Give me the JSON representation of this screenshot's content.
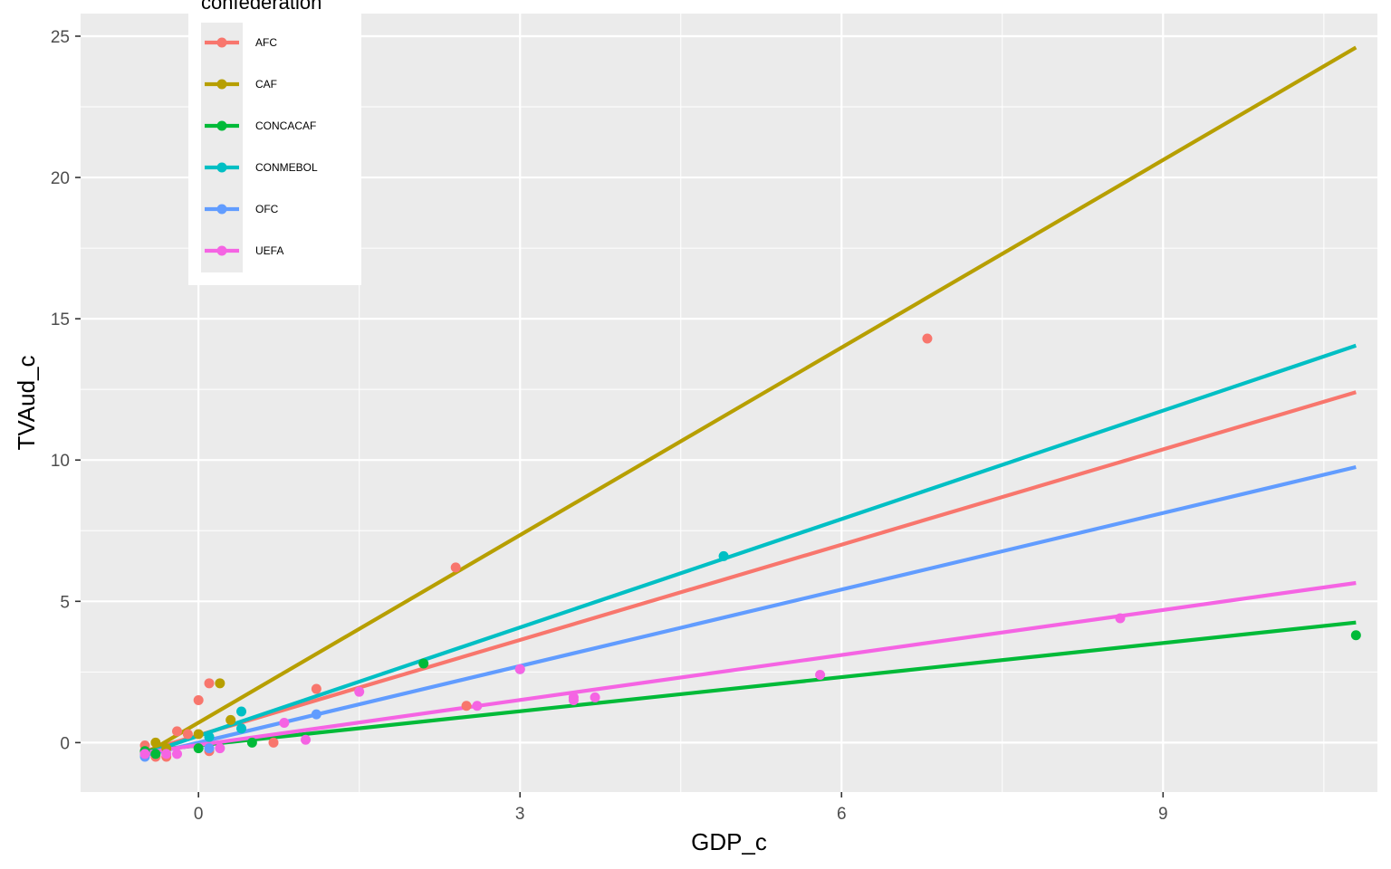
{
  "chart_data": {
    "type": "scatter",
    "xlabel": "GDP_c",
    "ylabel": "TVAud_c",
    "xlim": [
      -1.1,
      11.0
    ],
    "ylim": [
      -1.75,
      25.8
    ],
    "x_ticks": [
      {
        "value": 0,
        "label": "0"
      },
      {
        "value": 3,
        "label": "3"
      },
      {
        "value": 6,
        "label": "6"
      },
      {
        "value": 9,
        "label": "9"
      }
    ],
    "y_ticks": [
      {
        "value": 0,
        "label": "0"
      },
      {
        "value": 5,
        "label": "5"
      },
      {
        "value": 10,
        "label": "10"
      },
      {
        "value": 15,
        "label": "15"
      },
      {
        "value": 20,
        "label": "20"
      },
      {
        "value": 25,
        "label": "25"
      }
    ],
    "grid": true,
    "legend": {
      "title": "confederation",
      "position": "top-left"
    },
    "series": [
      {
        "name": "AFC",
        "color": "#F8766D",
        "points": [
          [
            -0.5,
            -0.1
          ],
          [
            -0.5,
            -0.3
          ],
          [
            -0.4,
            -0.5
          ],
          [
            -0.3,
            -0.5
          ],
          [
            -0.2,
            0.4
          ],
          [
            -0.1,
            0.3
          ],
          [
            0.0,
            1.5
          ],
          [
            0.1,
            2.1
          ],
          [
            0.1,
            -0.3
          ],
          [
            0.7,
            0.0
          ],
          [
            1.1,
            1.9
          ],
          [
            2.4,
            6.2
          ],
          [
            2.5,
            1.3
          ],
          [
            6.8,
            14.3
          ]
        ],
        "line": [
          [
            -0.5,
            -0.3
          ],
          [
            10.8,
            12.4
          ]
        ]
      },
      {
        "name": "CAF",
        "color": "#B79F00",
        "points": [
          [
            -0.4,
            0.0
          ],
          [
            -0.3,
            -0.2
          ],
          [
            0.0,
            0.3
          ],
          [
            0.2,
            2.1
          ],
          [
            0.3,
            0.8
          ]
        ],
        "line": [
          [
            -0.5,
            -0.4
          ],
          [
            10.8,
            24.6
          ]
        ]
      },
      {
        "name": "CONCACAF",
        "color": "#00BA38",
        "points": [
          [
            -0.5,
            -0.3
          ],
          [
            -0.4,
            -0.4
          ],
          [
            0.0,
            -0.2
          ],
          [
            0.5,
            0.0
          ],
          [
            2.1,
            2.8
          ],
          [
            10.8,
            3.8
          ]
        ],
        "line": [
          [
            -0.5,
            -0.3
          ],
          [
            10.8,
            4.25
          ]
        ]
      },
      {
        "name": "CONMEBOL",
        "color": "#00BFC4",
        "points": [
          [
            -0.5,
            -0.4
          ],
          [
            0.1,
            0.2
          ],
          [
            0.4,
            0.5
          ],
          [
            0.4,
            1.1
          ],
          [
            4.9,
            6.6
          ]
        ],
        "line": [
          [
            -0.5,
            -0.4
          ],
          [
            10.8,
            14.05
          ]
        ]
      },
      {
        "name": "OFC",
        "color": "#619CFF",
        "points": [
          [
            -0.5,
            -0.5
          ],
          [
            0.1,
            -0.2
          ],
          [
            1.1,
            1.0
          ],
          [
            3.0,
            2.6
          ]
        ],
        "line": [
          [
            -0.5,
            -0.45
          ],
          [
            10.8,
            9.75
          ]
        ]
      },
      {
        "name": "UEFA",
        "color": "#F564E3",
        "points": [
          [
            -0.5,
            -0.4
          ],
          [
            -0.2,
            -0.4
          ],
          [
            -0.3,
            -0.4
          ],
          [
            0.2,
            -0.2
          ],
          [
            0.8,
            0.7
          ],
          [
            1.0,
            0.1
          ],
          [
            1.5,
            1.8
          ],
          [
            2.6,
            1.3
          ],
          [
            3.0,
            2.6
          ],
          [
            3.5,
            1.5
          ],
          [
            3.5,
            1.6
          ],
          [
            3.7,
            1.6
          ],
          [
            5.8,
            2.4
          ],
          [
            8.6,
            4.4
          ]
        ],
        "line": [
          [
            -0.5,
            -0.35
          ],
          [
            10.8,
            5.65
          ]
        ]
      }
    ]
  }
}
